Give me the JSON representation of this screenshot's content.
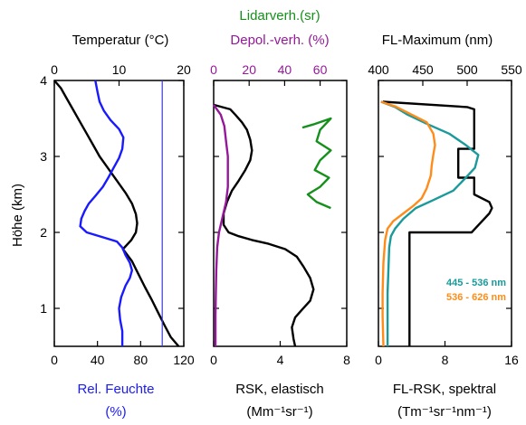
{
  "chart_data": [
    {
      "type": "line",
      "panel": "left",
      "y_axis": {
        "label": "Höhe (km)",
        "ylim": [
          0.5,
          4
        ],
        "ticks": [
          1,
          2,
          3,
          4
        ]
      },
      "top_axis": {
        "label": "Temperatur (°C)",
        "label_color": "#000000",
        "xlim": [
          0,
          20
        ],
        "ticks": [
          0,
          10,
          20
        ]
      },
      "bottom_axis": {
        "label_line1": "Rel. Feuchte",
        "label_line2": "(%)",
        "label_color": "#1a1aff",
        "xlim": [
          0,
          120
        ],
        "ticks": [
          0,
          40,
          80,
          120
        ]
      },
      "series": [
        {
          "axis": "top",
          "color": "#000000",
          "points": [
            [
              0,
              4.0
            ],
            [
              1,
              3.9
            ],
            [
              2,
              3.75
            ],
            [
              3,
              3.6
            ],
            [
              4,
              3.45
            ],
            [
              5,
              3.3
            ],
            [
              6,
              3.15
            ],
            [
              7,
              3.0
            ],
            [
              8,
              2.88
            ],
            [
              9,
              2.76
            ],
            [
              10,
              2.64
            ],
            [
              11,
              2.52
            ],
            [
              12,
              2.38
            ],
            [
              12.6,
              2.24
            ],
            [
              12.8,
              2.12
            ],
            [
              12.6,
              2.0
            ],
            [
              11.9,
              1.9
            ],
            [
              10.6,
              1.78
            ],
            [
              12,
              1.62
            ],
            [
              13,
              1.45
            ],
            [
              14,
              1.28
            ],
            [
              15,
              1.12
            ],
            [
              16,
              0.95
            ],
            [
              17,
              0.78
            ],
            [
              18,
              0.62
            ],
            [
              19.2,
              0.5
            ]
          ]
        },
        {
          "axis": "bottom",
          "color": "#1a1aff",
          "points": [
            [
              38,
              4.0
            ],
            [
              40,
              3.85
            ],
            [
              42,
              3.72
            ],
            [
              46,
              3.6
            ],
            [
              52,
              3.48
            ],
            [
              60,
              3.36
            ],
            [
              64,
              3.25
            ],
            [
              63,
              3.1
            ],
            [
              60,
              2.98
            ],
            [
              55,
              2.85
            ],
            [
              50,
              2.72
            ],
            [
              45,
              2.6
            ],
            [
              38,
              2.48
            ],
            [
              32,
              2.38
            ],
            [
              28,
              2.28
            ],
            [
              25,
              2.18
            ],
            [
              24,
              2.08
            ],
            [
              30,
              2.0
            ],
            [
              44,
              1.94
            ],
            [
              58,
              1.88
            ],
            [
              63,
              1.8
            ],
            [
              66,
              1.7
            ],
            [
              70,
              1.6
            ],
            [
              72,
              1.5
            ],
            [
              70,
              1.4
            ],
            [
              66,
              1.3
            ],
            [
              62,
              1.15
            ],
            [
              60,
              1.0
            ],
            [
              61,
              0.85
            ],
            [
              63,
              0.7
            ],
            [
              63,
              0.5
            ]
          ]
        },
        {
          "axis": "bottom",
          "color": "#3b3bd9",
          "points": [
            [
              100,
              0.5
            ],
            [
              100,
              4.0
            ]
          ]
        }
      ]
    },
    {
      "type": "line",
      "panel": "middle",
      "top_label_1": {
        "text": "Lidarverh.(sr)",
        "color": "#15901a"
      },
      "top_axis": {
        "label": "Depol.-verh. (%)",
        "label_color": "#96189a",
        "xlim": [
          0,
          75
        ],
        "ticks": [
          0,
          20,
          40,
          60
        ]
      },
      "bottom_axis": {
        "label_line1": "RSK, elastisch",
        "label_line2": "(Mm⁻¹sr⁻¹)",
        "label_color": "#000000",
        "xlim": [
          0,
          8
        ],
        "ticks": [
          0,
          4,
          8
        ]
      },
      "series": [
        {
          "name": "RSK elastisch",
          "axis": "bottom",
          "color": "#000000",
          "points": [
            [
              0,
              3.68
            ],
            [
              1.0,
              3.62
            ],
            [
              1.3,
              3.55
            ],
            [
              1.7,
              3.45
            ],
            [
              2.0,
              3.35
            ],
            [
              2.2,
              3.22
            ],
            [
              2.3,
              3.08
            ],
            [
              2.2,
              2.95
            ],
            [
              1.9,
              2.82
            ],
            [
              1.5,
              2.68
            ],
            [
              1.1,
              2.55
            ],
            [
              0.8,
              2.4
            ],
            [
              0.6,
              2.25
            ],
            [
              0.6,
              2.1
            ],
            [
              0.9,
              2.0
            ],
            [
              1.5,
              1.95
            ],
            [
              2.3,
              1.9
            ],
            [
              3.3,
              1.85
            ],
            [
              4.3,
              1.78
            ],
            [
              5.0,
              1.68
            ],
            [
              5.4,
              1.55
            ],
            [
              5.8,
              1.4
            ],
            [
              6.0,
              1.25
            ],
            [
              5.8,
              1.1
            ],
            [
              5.3,
              0.98
            ],
            [
              4.9,
              0.88
            ],
            [
              4.7,
              0.75
            ],
            [
              4.8,
              0.6
            ],
            [
              4.9,
              0.5
            ]
          ]
        },
        {
          "name": "Depol.-verh.",
          "axis": "top",
          "color": "#96189a",
          "points": [
            [
              0,
              3.68
            ],
            [
              4,
              3.55
            ],
            [
              6,
              3.4
            ],
            [
              7,
              3.2
            ],
            [
              8,
              3.0
            ],
            [
              8,
              2.8
            ],
            [
              8,
              2.6
            ],
            [
              7,
              2.4
            ],
            [
              5,
              2.2
            ],
            [
              3,
              2.0
            ],
            [
              2,
              1.8
            ],
            [
              1.5,
              1.5
            ],
            [
              1.2,
              1.2
            ],
            [
              1,
              0.9
            ],
            [
              1,
              0.5
            ]
          ]
        },
        {
          "name": "Lidarverh.",
          "axis": "top",
          "color": "#15901a",
          "points": [
            [
              50,
              3.38
            ],
            [
              56,
              3.42
            ],
            [
              66,
              3.5
            ],
            [
              60,
              3.35
            ],
            [
              58,
              3.2
            ],
            [
              66,
              3.08
            ],
            [
              60,
              2.95
            ],
            [
              57,
              2.82
            ],
            [
              65,
              2.72
            ],
            [
              60,
              2.6
            ],
            [
              53,
              2.5
            ],
            [
              58,
              2.4
            ],
            [
              66,
              2.32
            ]
          ]
        }
      ]
    },
    {
      "type": "line",
      "panel": "right",
      "top_axis": {
        "label": "FL-Maximum (nm)",
        "label_color": "#000000",
        "xlim": [
          400,
          550
        ],
        "ticks": [
          400,
          450,
          500,
          550
        ]
      },
      "bottom_axis": {
        "label_line1": "FL-RSK, spektral",
        "label_line2": "(Tm⁻¹sr⁻¹nm⁻¹)",
        "label_color": "#000000",
        "xlim": [
          0,
          16
        ],
        "ticks": [
          0,
          8,
          16
        ]
      },
      "legend": [
        {
          "text": "445 - 536 nm",
          "color": "#1a9a9a"
        },
        {
          "text": "536 - 626 nm",
          "color": "#ff8c1a"
        }
      ],
      "series": [
        {
          "name": "FL-Maximum",
          "axis": "top",
          "color": "#000000",
          "points": [
            [
              405,
              3.72
            ],
            [
              500,
              3.65
            ],
            [
              508,
              3.62
            ],
            [
              508,
              3.1
            ],
            [
              490,
              3.1
            ],
            [
              490,
              2.72
            ],
            [
              508,
              2.72
            ],
            [
              508,
              2.5
            ],
            [
              525,
              2.4
            ],
            [
              528,
              2.32
            ],
            [
              525,
              2.25
            ],
            [
              505,
              2.0
            ],
            [
              435,
              2.0
            ],
            [
              435,
              0.5
            ]
          ]
        },
        {
          "name": "445 - 536 nm",
          "axis": "bottom",
          "color": "#1a9a9a",
          "points": [
            [
              0.3,
              3.72
            ],
            [
              2,
              3.65
            ],
            [
              3.5,
              3.55
            ],
            [
              6,
              3.42
            ],
            [
              8.5,
              3.3
            ],
            [
              10.5,
              3.15
            ],
            [
              12,
              3.02
            ],
            [
              11.6,
              2.85
            ],
            [
              10.5,
              2.72
            ],
            [
              9,
              2.55
            ],
            [
              6.5,
              2.42
            ],
            [
              4.5,
              2.32
            ],
            [
              3,
              2.18
            ],
            [
              2,
              2.05
            ],
            [
              1.5,
              1.95
            ],
            [
              1.3,
              1.8
            ],
            [
              1.2,
              1.5
            ],
            [
              1.1,
              1.2
            ],
            [
              1.1,
              0.9
            ],
            [
              1.1,
              0.5
            ]
          ]
        },
        {
          "name": "536 - 626 nm",
          "axis": "bottom",
          "color": "#ff8c1a",
          "points": [
            [
              0.3,
              3.72
            ],
            [
              2,
              3.66
            ],
            [
              4,
              3.55
            ],
            [
              5.8,
              3.45
            ],
            [
              6.6,
              3.3
            ],
            [
              6.8,
              3.15
            ],
            [
              6.6,
              3.02
            ],
            [
              6.4,
              2.88
            ],
            [
              6.3,
              2.75
            ],
            [
              5.8,
              2.58
            ],
            [
              5.2,
              2.45
            ],
            [
              4.2,
              2.35
            ],
            [
              3,
              2.25
            ],
            [
              1.8,
              2.15
            ],
            [
              1.1,
              2.05
            ],
            [
              0.8,
              1.9
            ],
            [
              0.6,
              1.6
            ],
            [
              0.5,
              1.2
            ],
            [
              0.5,
              0.9
            ],
            [
              0.6,
              0.5
            ]
          ]
        }
      ]
    }
  ]
}
